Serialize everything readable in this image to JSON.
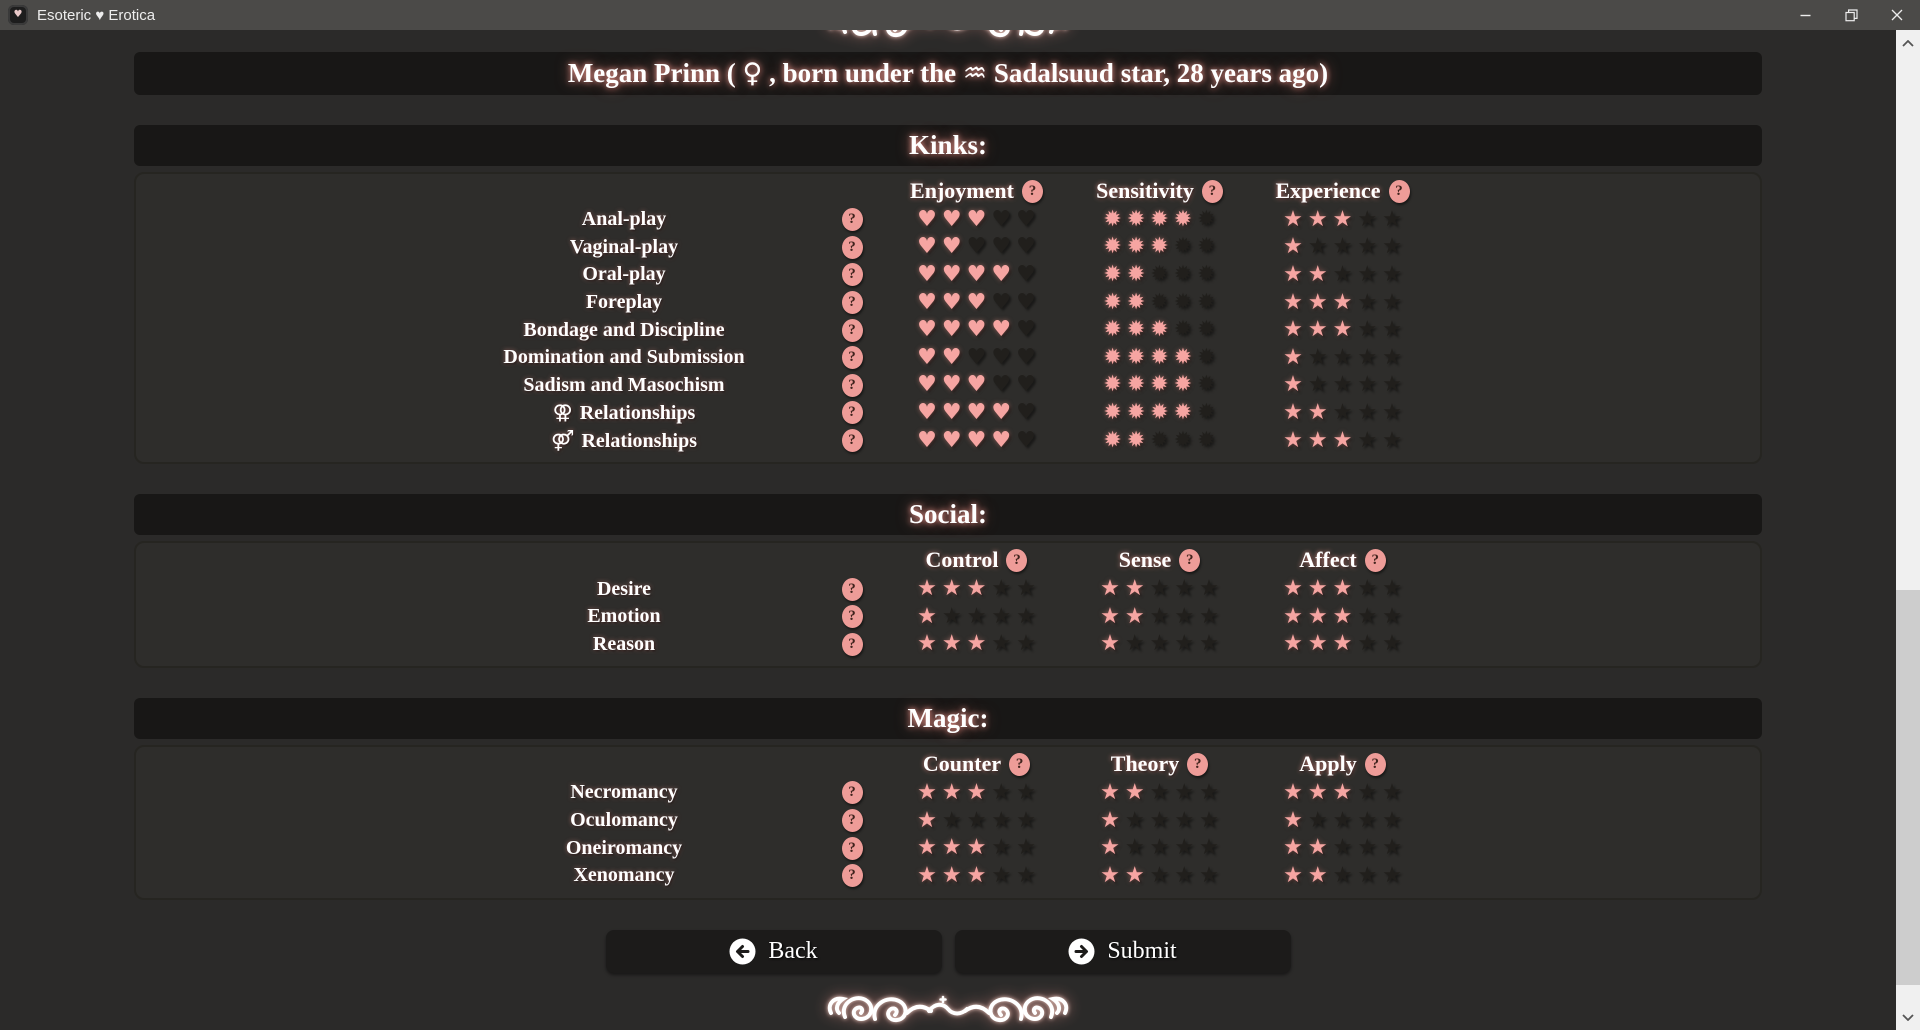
{
  "titlebar": {
    "title": "Esoteric ♥ Erotica",
    "icon_heart": "♥"
  },
  "header": {
    "part1": "Megan Prinn ( ",
    "female_symbol": "♀",
    "part2": " , born under the ",
    "zodiac_symbol": "♒",
    "part3": " Sadalsuud star, 28 years ago)"
  },
  "rating_max": 5,
  "help_symbol": "?",
  "colors": {
    "accent_pink": "#f6a5a2",
    "bar_bg": "#181716",
    "panel_bg": "#2e2d2b",
    "page_bg": "#2b2a29",
    "empty_icon": "#211f1c"
  },
  "sections": [
    {
      "id": "kinks",
      "title": "Kinks:",
      "columns": [
        "Enjoyment",
        "Sensitivity",
        "Experience"
      ],
      "icon_names": [
        "heart-icon",
        "flower-icon",
        "star-icon"
      ],
      "icon_glyphs": [
        "♥",
        "✹",
        "★"
      ],
      "rows": [
        {
          "symbol": "",
          "label": "Anal-play",
          "values": [
            3,
            4,
            3
          ]
        },
        {
          "symbol": "",
          "label": "Vaginal-play",
          "values": [
            2,
            3,
            1
          ]
        },
        {
          "symbol": "",
          "label": "Oral-play",
          "values": [
            4,
            2,
            2
          ]
        },
        {
          "symbol": "",
          "label": "Foreplay",
          "values": [
            3,
            2,
            3
          ]
        },
        {
          "symbol": "",
          "label": "Bondage and Discipline",
          "values": [
            4,
            3,
            3
          ]
        },
        {
          "symbol": "",
          "label": "Domination and Submission",
          "values": [
            2,
            4,
            1
          ]
        },
        {
          "symbol": "",
          "label": "Sadism and Masochism",
          "values": [
            3,
            4,
            1
          ]
        },
        {
          "symbol": "⚢",
          "label": "Relationships",
          "values": [
            4,
            4,
            2
          ]
        },
        {
          "symbol": "⚤",
          "label": "Relationships",
          "values": [
            4,
            2,
            3
          ]
        }
      ]
    },
    {
      "id": "social",
      "title": "Social:",
      "columns": [
        "Control",
        "Sense",
        "Affect"
      ],
      "icon_names": [
        "star-icon",
        "star-icon",
        "star-icon"
      ],
      "icon_glyphs": [
        "★",
        "★",
        "★"
      ],
      "rows": [
        {
          "symbol": "",
          "label": "Desire",
          "values": [
            3,
            2,
            3
          ]
        },
        {
          "symbol": "",
          "label": "Emotion",
          "values": [
            1,
            2,
            3
          ]
        },
        {
          "symbol": "",
          "label": "Reason",
          "values": [
            3,
            1,
            3
          ]
        }
      ]
    },
    {
      "id": "magic",
      "title": "Magic:",
      "columns": [
        "Counter",
        "Theory",
        "Apply"
      ],
      "icon_names": [
        "star-icon",
        "star-icon",
        "star-icon"
      ],
      "icon_glyphs": [
        "★",
        "★",
        "★"
      ],
      "rows": [
        {
          "symbol": "",
          "label": "Necromancy",
          "values": [
            3,
            2,
            3
          ]
        },
        {
          "symbol": "",
          "label": "Oculomancy",
          "values": [
            1,
            1,
            1
          ]
        },
        {
          "symbol": "",
          "label": "Oneiromancy",
          "values": [
            3,
            1,
            2
          ]
        },
        {
          "symbol": "",
          "label": "Xenomancy",
          "values": [
            3,
            2,
            2
          ]
        }
      ]
    }
  ],
  "footer": {
    "back_label": "Back",
    "submit_label": "Submit"
  }
}
